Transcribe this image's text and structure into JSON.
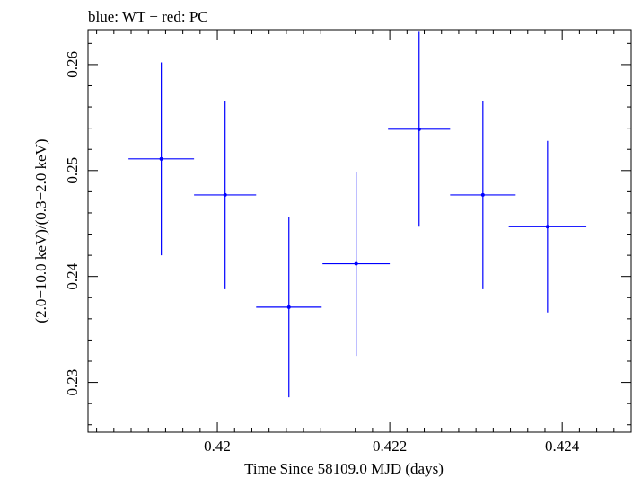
{
  "chart_data": {
    "type": "scatter",
    "title": "blue: WT − red: PC",
    "xlabel": "Time Since 58109.0 MJD (days)",
    "ylabel": "(2.0−10.0 keV)/(0.3−2.0 keV)",
    "xlim": [
      0.4185,
      0.4248
    ],
    "ylim": [
      0.2253,
      0.2633
    ],
    "x_ticks": [
      {
        "value": 0.42,
        "label": "0.42"
      },
      {
        "value": 0.422,
        "label": "0.422"
      },
      {
        "value": 0.424,
        "label": "0.424"
      }
    ],
    "y_ticks": [
      {
        "value": 0.23,
        "label": "0.23"
      },
      {
        "value": 0.24,
        "label": "0.24"
      },
      {
        "value": 0.25,
        "label": "0.25"
      },
      {
        "value": 0.26,
        "label": "0.26"
      }
    ],
    "series": [
      {
        "name": "WT",
        "color": "#0000ff",
        "points": [
          {
            "x": 0.41935,
            "xerr": 0.00038,
            "y": 0.2511,
            "yerr": 0.0091
          },
          {
            "x": 0.42009,
            "xerr": 0.00036,
            "y": 0.2477,
            "yerr": 0.0089
          },
          {
            "x": 0.42083,
            "xerr": 0.00038,
            "y": 0.2371,
            "yerr": 0.0085
          },
          {
            "x": 0.42161,
            "xerr": 0.00039,
            "y": 0.2412,
            "yerr": 0.0087
          },
          {
            "x": 0.42234,
            "xerr": 0.00036,
            "y": 0.2539,
            "yerr": 0.0092
          },
          {
            "x": 0.42308,
            "xerr": 0.00038,
            "y": 0.2477,
            "yerr": 0.0089
          },
          {
            "x": 0.42383,
            "xerr": 0.00045,
            "y": 0.2447,
            "yerr": 0.0081
          }
        ]
      },
      {
        "name": "PC",
        "color": "#ff0000",
        "points": []
      }
    ]
  }
}
